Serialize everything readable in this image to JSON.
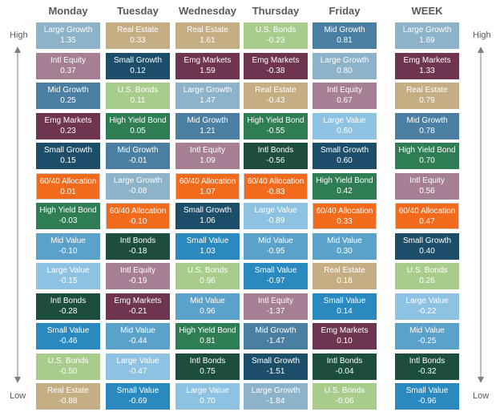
{
  "colors": {
    "Large Growth": "#8cb3c9",
    "Real Estate": "#c5ad84",
    "U.S. Bonds": "#a8cc8c",
    "Mid Growth": "#4a7fa3",
    "Intl Equity": "#a77f95",
    "Small Growth": "#1d4e69",
    "Emg Markets": "#6e3450",
    "High Yield Bond": "#2f7d55",
    "Intl Bonds": "#1c4d3f",
    "60/40 Allocation": "#f26b1d",
    "Large Value": "#8ec2e2",
    "Mid Value": "#5ba2cb",
    "Small Value": "#2a89bf"
  },
  "labels": {
    "high": "High",
    "low": "Low"
  },
  "chart_data": {
    "type": "table",
    "columns": [
      {
        "day": "Monday",
        "cells": [
          {
            "name": "Large Growth",
            "value": "1.35"
          },
          {
            "name": "Intl Equity",
            "value": "0.37"
          },
          {
            "name": "Mid Growth",
            "value": "0.25"
          },
          {
            "name": "Emg Markets",
            "value": "0.23"
          },
          {
            "name": "Small Growth",
            "value": "0.15"
          },
          {
            "name": "60/40 Allocation",
            "value": "0.01"
          },
          {
            "name": "High Yield Bond",
            "value": "-0.03"
          },
          {
            "name": "Mid Value",
            "value": "-0.10"
          },
          {
            "name": "Large Value",
            "value": "-0.15"
          },
          {
            "name": "Intl Bonds",
            "value": "-0.28"
          },
          {
            "name": "Small Value",
            "value": "-0.46"
          },
          {
            "name": "U.S. Bonds",
            "value": "-0.50"
          },
          {
            "name": "Real Estate",
            "value": "-0.88"
          }
        ]
      },
      {
        "day": "Tuesday",
        "cells": [
          {
            "name": "Real Estate",
            "value": "0.33"
          },
          {
            "name": "Small Growth",
            "value": "0.12"
          },
          {
            "name": "U.S. Bonds",
            "value": "0.11"
          },
          {
            "name": "High Yield Bond",
            "value": "0.05"
          },
          {
            "name": "Mid Growth",
            "value": "-0.01"
          },
          {
            "name": "Large Growth",
            "value": "-0.08"
          },
          {
            "name": "60/40 Allocation",
            "value": "-0.10"
          },
          {
            "name": "Intl Bonds",
            "value": "-0.18"
          },
          {
            "name": "Intl Equity",
            "value": "-0.19"
          },
          {
            "name": "Emg Markets",
            "value": "-0.21"
          },
          {
            "name": "Mid Value",
            "value": "-0.44"
          },
          {
            "name": "Large Value",
            "value": "-0.47"
          },
          {
            "name": "Small Value",
            "value": "-0.69"
          }
        ]
      },
      {
        "day": "Wednesday",
        "cells": [
          {
            "name": "Real Estate",
            "value": "1.61"
          },
          {
            "name": "Emg Markets",
            "value": "1.59"
          },
          {
            "name": "Large Growth",
            "value": "1.47"
          },
          {
            "name": "Mid Growth",
            "value": "1.21"
          },
          {
            "name": "Intl Equity",
            "value": "1.09"
          },
          {
            "name": "60/40 Allocation",
            "value": "1.07"
          },
          {
            "name": "Small Growth",
            "value": "1.06"
          },
          {
            "name": "Small Value",
            "value": "1.03"
          },
          {
            "name": "U.S. Bonds",
            "value": "0.96"
          },
          {
            "name": "Mid Value",
            "value": "0.96"
          },
          {
            "name": "High Yield Bond",
            "value": "0.81"
          },
          {
            "name": "Intl Bonds",
            "value": "0.75"
          },
          {
            "name": "Large Value",
            "value": "0.70"
          }
        ]
      },
      {
        "day": "Thursday",
        "cells": [
          {
            "name": "U.S. Bonds",
            "value": "-0.23"
          },
          {
            "name": "Emg Markets",
            "value": "-0.38"
          },
          {
            "name": "Real Estate",
            "value": "-0.43"
          },
          {
            "name": "High Yield Bond",
            "value": "-0.55"
          },
          {
            "name": "Intl Bonds",
            "value": "-0.56"
          },
          {
            "name": "60/40 Allocation",
            "value": "-0.83"
          },
          {
            "name": "Large Value",
            "value": "-0.89"
          },
          {
            "name": "Mid Value",
            "value": "-0.95"
          },
          {
            "name": "Small Value",
            "value": "-0.97"
          },
          {
            "name": "Intl Equity",
            "value": "-1.37"
          },
          {
            "name": "Mid Growth",
            "value": "-1.47"
          },
          {
            "name": "Small Growth",
            "value": "-1.51"
          },
          {
            "name": "Large Growth",
            "value": "-1.84"
          }
        ]
      },
      {
        "day": "Friday",
        "cells": [
          {
            "name": "Mid Growth",
            "value": "0.81"
          },
          {
            "name": "Large Growth",
            "value": "0.80"
          },
          {
            "name": "Intl Equity",
            "value": "0.67"
          },
          {
            "name": "Large Value",
            "value": "0.60"
          },
          {
            "name": "Small Growth",
            "value": "0.60"
          },
          {
            "name": "High Yield Bond",
            "value": "0.42"
          },
          {
            "name": "60/40 Allocation",
            "value": "0.33"
          },
          {
            "name": "Mid Value",
            "value": "0.30"
          },
          {
            "name": "Real Estate",
            "value": "0.18"
          },
          {
            "name": "Small Value",
            "value": "0.14"
          },
          {
            "name": "Emg Markets",
            "value": "0.10"
          },
          {
            "name": "Intl Bonds",
            "value": "-0.04"
          },
          {
            "name": "U.S. Bonds",
            "value": "-0.06"
          }
        ]
      },
      {
        "day": "WEEK",
        "cells": [
          {
            "name": "Large Growth",
            "value": "1.69"
          },
          {
            "name": "Emg Markets",
            "value": "1.33"
          },
          {
            "name": "Real Estate",
            "value": "0.79"
          },
          {
            "name": "Mid Growth",
            "value": "0.78"
          },
          {
            "name": "High Yield Bond",
            "value": "0.70"
          },
          {
            "name": "Intl Equity",
            "value": "0.56"
          },
          {
            "name": "60/40 Allocation",
            "value": "0.47"
          },
          {
            "name": "Small Growth",
            "value": "0.40"
          },
          {
            "name": "U.S. Bonds",
            "value": "0.26"
          },
          {
            "name": "Large Value",
            "value": "-0.22"
          },
          {
            "name": "Mid Value",
            "value": "-0.25"
          },
          {
            "name": "Intl Bonds",
            "value": "-0.32"
          },
          {
            "name": "Small Value",
            "value": "-0.96"
          }
        ]
      }
    ]
  }
}
